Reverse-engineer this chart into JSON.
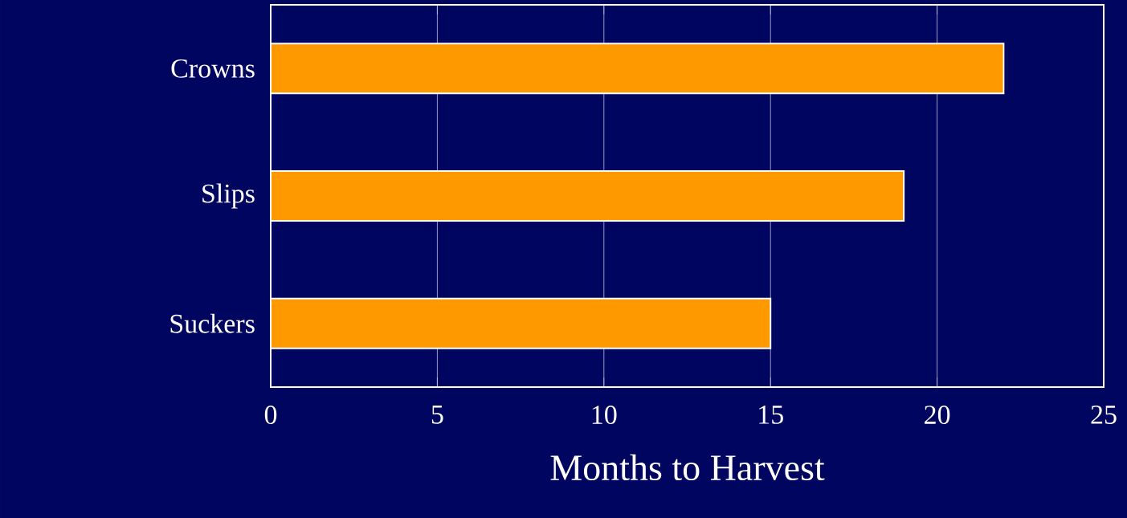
{
  "chart_data": {
    "type": "bar",
    "orientation": "horizontal",
    "xlabel": "Months to Harvest",
    "categories": [
      "Crowns",
      "Slips",
      "Suckers"
    ],
    "values": [
      22,
      19,
      15
    ],
    "color": "#ff9900",
    "xlim": [
      0,
      25
    ],
    "xticks": [
      0,
      5,
      10,
      15,
      20,
      25
    ],
    "grid": "x"
  }
}
